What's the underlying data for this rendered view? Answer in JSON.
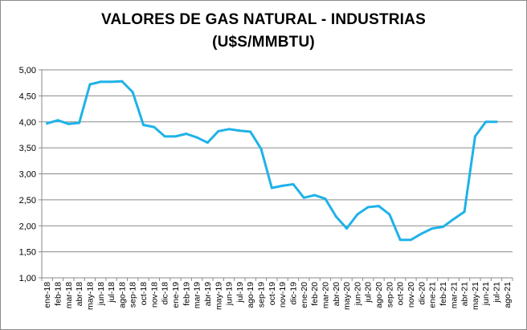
{
  "chart_data": {
    "type": "line",
    "title_line1": "VALORES DE GAS NATURAL - INDUSTRIAS",
    "title_line2": "(U$S/MMBTU)",
    "xlabel": "",
    "ylabel": "",
    "ylim": [
      1.0,
      5.0
    ],
    "yticks": [
      "1,00",
      "1,50",
      "2,00",
      "2,50",
      "3,00",
      "3,50",
      "4,00",
      "4,50",
      "5,00"
    ],
    "grid": true,
    "legend": "none",
    "line_color": "#1fb2e8",
    "categories": [
      "ene-18",
      "feb-18",
      "mar-18",
      "abr-18",
      "may-18",
      "jun-18",
      "jul-18",
      "ago-18",
      "sep-18",
      "oct-18",
      "nov-18",
      "dic-18",
      "ene-19",
      "feb-19",
      "mar-19",
      "abr-19",
      "may-19",
      "jun-19",
      "jul-19",
      "ago-19",
      "sep-19",
      "oct-19",
      "nov-19",
      "dic-19",
      "ene-20",
      "feb-20",
      "mar-20",
      "abr-20",
      "may-20",
      "jun-20",
      "jul-20",
      "ago-20",
      "sep-20",
      "oct-20",
      "nov-20",
      "dic-20",
      "ene-21",
      "feb-21",
      "mar-21",
      "abr-21",
      "may-21",
      "jun-21",
      "jul-21",
      "ago-21"
    ],
    "values": [
      3.97,
      4.03,
      3.96,
      3.98,
      4.72,
      4.77,
      4.77,
      4.78,
      4.57,
      3.94,
      3.9,
      3.72,
      3.72,
      3.77,
      3.7,
      3.6,
      3.82,
      3.86,
      3.83,
      3.81,
      3.48,
      2.73,
      2.77,
      2.8,
      2.54,
      2.59,
      2.52,
      2.18,
      1.95,
      2.22,
      2.36,
      2.38,
      2.22,
      1.73,
      1.73,
      1.85,
      1.95,
      1.98,
      2.13,
      2.27,
      3.72,
      4.0,
      4.0,
      null
    ]
  }
}
